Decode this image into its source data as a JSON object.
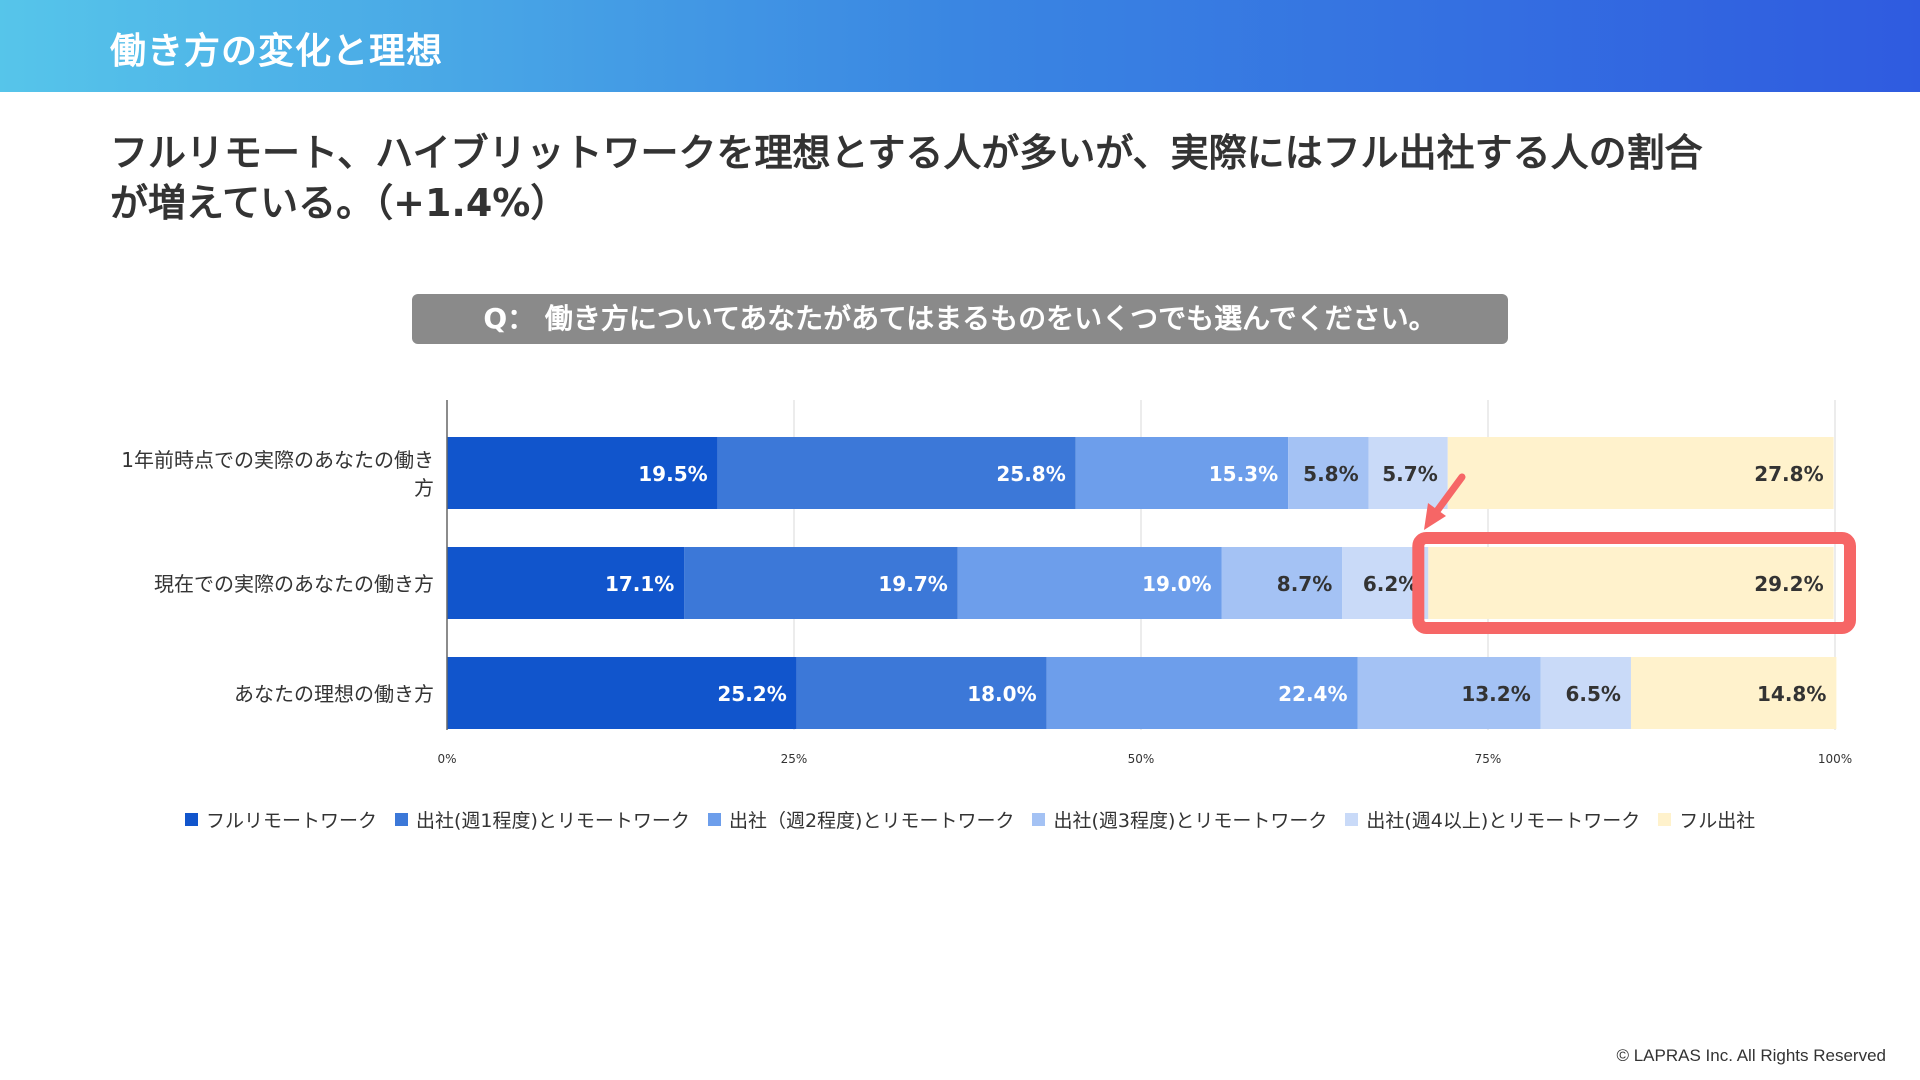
{
  "header": {
    "title": "働き方の変化と理想"
  },
  "headline": {
    "line1": "フルリモート、ハイブリットワークを理想とする人が多いが、実際にはフル出社する人の割合",
    "line2": "が増えている。（+1.4%）"
  },
  "question": "Q： 働き方についてあなたがあてはまるものをいくつでも選んでください。",
  "footer": {
    "copyright": "© LAPRAS Inc. All Rights Reserved"
  },
  "chart_data": {
    "type": "bar",
    "orientation": "horizontal",
    "stacked": true,
    "categories": [
      "1年前時点での実際のあなたの働き方",
      "現在での実際のあなたの働き方",
      "あなたの理想の働き方"
    ],
    "category_lines": [
      [
        "1年前時点での実際のあなたの働き",
        "方"
      ],
      [
        "現在での実際のあなたの働き方"
      ],
      [
        "あなたの理想の働き方"
      ]
    ],
    "series": [
      {
        "name": "フルリモートワーク",
        "color": "#1155cc",
        "values": [
          19.5,
          17.1,
          25.2
        ],
        "labels": [
          "19.5%",
          "17.1%",
          "25.2%"
        ]
      },
      {
        "name": "出社(週1程度)とリモートワーク",
        "color": "#3c78d8",
        "values": [
          25.8,
          19.7,
          18.0
        ],
        "labels": [
          "25.8%",
          "19.7%",
          "18.0%"
        ]
      },
      {
        "name": "出社（週2程度)とリモートワーク",
        "color": "#6d9eeb",
        "values": [
          15.3,
          19.0,
          22.4
        ],
        "labels": [
          "15.3%",
          "19.0%",
          "22.4%"
        ]
      },
      {
        "name": "出社(週3程度)とリモートワーク",
        "color": "#a4c2f4",
        "values": [
          5.8,
          8.7,
          13.2
        ],
        "labels": [
          "5.8%",
          "8.7%",
          "13.2%"
        ]
      },
      {
        "name": "出社(週4以上)とリモートワーク",
        "color": "#c9daf8",
        "values": [
          5.7,
          6.2,
          6.5
        ],
        "labels": [
          "5.7%",
          "6.2%",
          "6.5%"
        ]
      },
      {
        "name": "フル出社",
        "color": "#fff2cc",
        "values": [
          27.8,
          29.2,
          14.8
        ],
        "labels": [
          "27.8%",
          "29.2%",
          "14.8%"
        ]
      }
    ],
    "xlim": [
      0,
      100
    ],
    "xticks": [
      0,
      25,
      50,
      75,
      100
    ],
    "xtick_labels": [
      "0%",
      "25%",
      "50%",
      "75%",
      "100%"
    ],
    "grid": true,
    "legend": "bottom",
    "highlight": {
      "category_index": 1,
      "series_index": 5,
      "color": "#f66666"
    }
  }
}
